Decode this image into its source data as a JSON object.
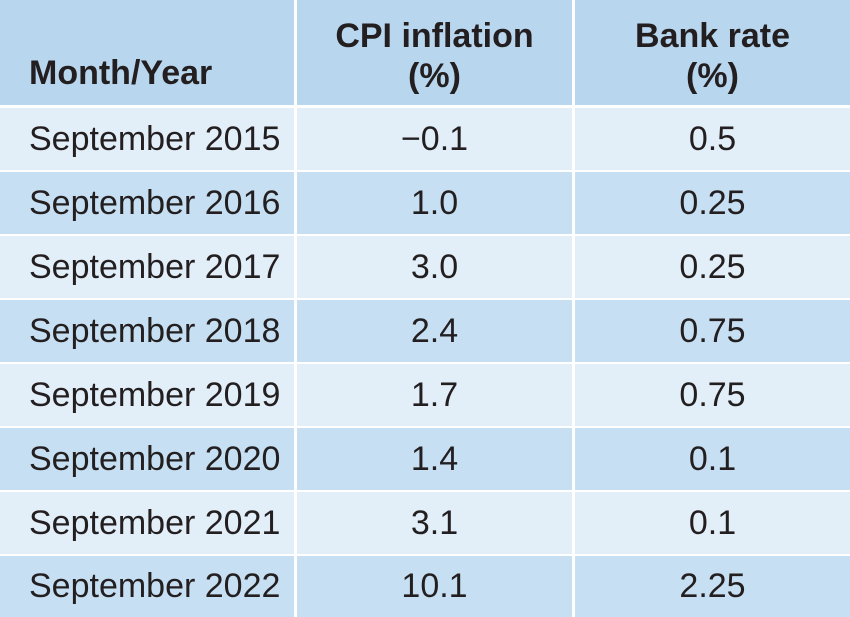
{
  "header": {
    "month_year": "Month/Year",
    "cpi_line1": "CPI inflation",
    "cpi_line2": "(%)",
    "bank_line1": "Bank rate",
    "bank_line2": "(%)"
  },
  "rows": [
    {
      "month": "September 2015",
      "cpi": "−0.1",
      "bank": "0.5"
    },
    {
      "month": "September 2016",
      "cpi": "1.0",
      "bank": "0.25"
    },
    {
      "month": "September 2017",
      "cpi": "3.0",
      "bank": "0.25"
    },
    {
      "month": "September 2018",
      "cpi": "2.4",
      "bank": "0.75"
    },
    {
      "month": "September 2019",
      "cpi": "1.7",
      "bank": "0.75"
    },
    {
      "month": "September 2020",
      "cpi": "1.4",
      "bank": "0.1"
    },
    {
      "month": "September 2021",
      "cpi": "3.1",
      "bank": "0.1"
    },
    {
      "month": "September 2022",
      "cpi": "10.1",
      "bank": "2.25"
    }
  ],
  "colors": {
    "header_bg": "#b8d6ee",
    "row_light": "#e2eef8",
    "row_dark": "#c6dff2",
    "text": "#231f20"
  }
}
